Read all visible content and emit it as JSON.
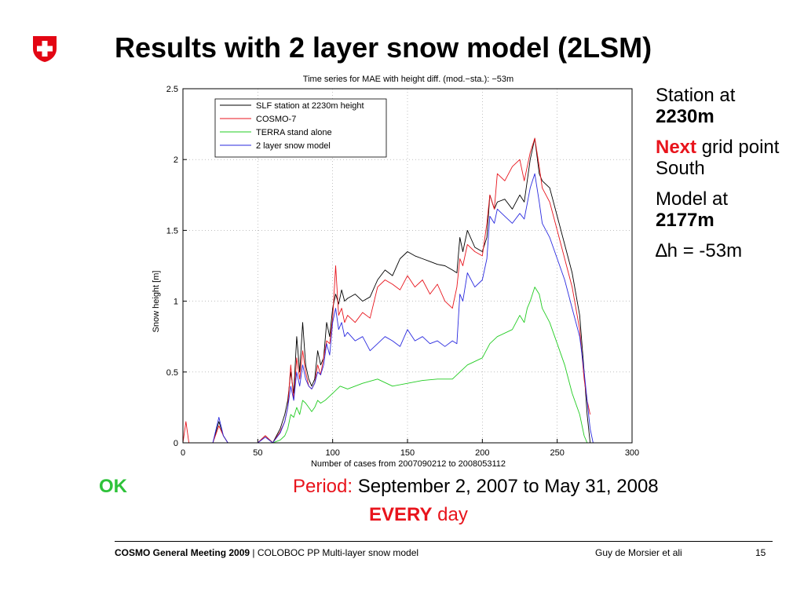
{
  "slide": {
    "title": "Results with 2 layer snow model (2LSM)",
    "side_notes": {
      "station_line1": "Station at",
      "station_line2": "2230m",
      "next_word": "Next",
      "next_rest": "grid point South",
      "model_line1": "Model at",
      "model_line2": "2177m",
      "delta_h": "∆h = -53m"
    },
    "ok_label": "OK",
    "period_label": "Period:",
    "period_text": "September 2, 2007 to May 31, 2008",
    "every_bold": "EVERY",
    "every_rest": "day",
    "footer": {
      "meeting": "COSMO General Meeting 2009",
      "separator": " | ",
      "project": "COLOBOC PP Multi-layer snow model",
      "author": "Guy de Morsier et ali",
      "page": "15"
    },
    "colors": {
      "red": "#e8141c",
      "green": "#2ec23a",
      "logo_red": "#e30613"
    }
  },
  "chart_data": {
    "type": "line",
    "title": "Time series for MAE with height diff. (mod.−sta.): −53m",
    "xlabel": "Number of cases from 2007090212 to 2008053112",
    "ylabel": "Snow height [m]",
    "xlim": [
      0,
      300
    ],
    "ylim": [
      0,
      2.5
    ],
    "xticks": [
      0,
      50,
      100,
      150,
      200,
      250,
      300
    ],
    "yticks": [
      0,
      0.5,
      1,
      1.5,
      2,
      2.5
    ],
    "grid": true,
    "legend_position": "top-left",
    "series": [
      {
        "name": "SLF station at 2230m height",
        "color": "#000000",
        "x": [
          0,
          15,
          20,
          24,
          27,
          30,
          35,
          45,
          50,
          55,
          60,
          65,
          68,
          70,
          72,
          74,
          76,
          78,
          80,
          82,
          84,
          86,
          88,
          90,
          92,
          94,
          96,
          98,
          100,
          102,
          104,
          106,
          108,
          110,
          115,
          120,
          125,
          130,
          135,
          140,
          145,
          150,
          155,
          160,
          165,
          170,
          175,
          180,
          183,
          185,
          187,
          190,
          195,
          200,
          203,
          205,
          208,
          210,
          215,
          220,
          225,
          228,
          232,
          235,
          238,
          240,
          245,
          250,
          255,
          260,
          265,
          268,
          270,
          272
        ],
        "y": [
          0,
          0,
          0,
          0.15,
          0.05,
          0,
          0,
          0,
          0,
          0.05,
          0,
          0.1,
          0.2,
          0.3,
          0.5,
          0.35,
          0.75,
          0.5,
          0.85,
          0.55,
          0.45,
          0.4,
          0.45,
          0.65,
          0.55,
          0.6,
          0.85,
          0.75,
          0.95,
          1.05,
          0.98,
          1.08,
          1.0,
          1.02,
          1.05,
          1.0,
          1.03,
          1.15,
          1.22,
          1.18,
          1.3,
          1.35,
          1.32,
          1.3,
          1.28,
          1.26,
          1.25,
          1.22,
          1.2,
          1.45,
          1.35,
          1.5,
          1.38,
          1.35,
          1.45,
          1.75,
          1.65,
          1.7,
          1.72,
          1.65,
          1.75,
          1.7,
          2.0,
          2.15,
          1.9,
          1.85,
          1.8,
          1.6,
          1.4,
          1.2,
          0.9,
          0.5,
          0.2,
          0
        ]
      },
      {
        "name": "COSMO-7",
        "color": "#e8141c",
        "x": [
          0,
          2,
          4,
          15,
          20,
          24,
          27,
          30,
          35,
          45,
          50,
          55,
          60,
          65,
          68,
          70,
          72,
          74,
          76,
          78,
          80,
          82,
          84,
          86,
          88,
          90,
          92,
          94,
          96,
          98,
          100,
          102,
          104,
          106,
          108,
          110,
          115,
          120,
          125,
          130,
          135,
          140,
          145,
          150,
          155,
          160,
          165,
          170,
          175,
          180,
          183,
          185,
          187,
          190,
          195,
          200,
          203,
          205,
          208,
          210,
          215,
          220,
          225,
          228,
          232,
          235,
          238,
          240,
          245,
          250,
          255,
          260,
          265,
          268,
          270,
          272
        ],
        "y": [
          0,
          0.15,
          0,
          0,
          0,
          0.12,
          0.05,
          0,
          0,
          0,
          0,
          0.05,
          0,
          0.08,
          0.15,
          0.25,
          0.55,
          0.3,
          0.6,
          0.45,
          0.65,
          0.5,
          0.4,
          0.38,
          0.42,
          0.55,
          0.48,
          0.6,
          0.72,
          0.7,
          0.88,
          1.25,
          0.9,
          0.95,
          0.85,
          0.9,
          0.85,
          0.92,
          0.88,
          1.1,
          1.15,
          1.12,
          1.08,
          1.18,
          1.1,
          1.15,
          1.05,
          1.12,
          1.0,
          0.95,
          1.1,
          1.3,
          1.25,
          1.4,
          1.35,
          1.32,
          1.55,
          1.75,
          1.65,
          1.9,
          1.85,
          1.95,
          2.0,
          1.85,
          2.05,
          2.15,
          1.95,
          1.8,
          1.7,
          1.5,
          1.3,
          1.1,
          0.8,
          0.45,
          0.3,
          0.2
        ]
      },
      {
        "name": "TERRA stand alone",
        "color": "#22cc22",
        "x": [
          0,
          50,
          60,
          65,
          68,
          70,
          72,
          74,
          76,
          78,
          80,
          82,
          84,
          86,
          88,
          90,
          92,
          95,
          100,
          105,
          110,
          120,
          130,
          140,
          150,
          160,
          170,
          180,
          185,
          190,
          200,
          205,
          210,
          220,
          225,
          228,
          230,
          232,
          235,
          238,
          240,
          245,
          250,
          255,
          260,
          265,
          268,
          270
        ],
        "y": [
          0,
          0,
          0,
          0.02,
          0.05,
          0.1,
          0.2,
          0.18,
          0.25,
          0.2,
          0.3,
          0.28,
          0.25,
          0.22,
          0.25,
          0.3,
          0.28,
          0.3,
          0.35,
          0.4,
          0.38,
          0.42,
          0.45,
          0.4,
          0.42,
          0.44,
          0.45,
          0.45,
          0.5,
          0.55,
          0.6,
          0.7,
          0.75,
          0.8,
          0.9,
          0.85,
          0.95,
          1.0,
          1.1,
          1.05,
          0.95,
          0.85,
          0.7,
          0.55,
          0.35,
          0.2,
          0.05,
          0
        ]
      },
      {
        "name": "2 layer snow model",
        "color": "#2a2adf",
        "x": [
          0,
          15,
          20,
          24,
          27,
          30,
          35,
          45,
          50,
          55,
          60,
          65,
          68,
          70,
          72,
          74,
          76,
          78,
          80,
          82,
          84,
          86,
          88,
          90,
          92,
          94,
          96,
          98,
          100,
          102,
          104,
          106,
          108,
          110,
          115,
          120,
          125,
          130,
          135,
          140,
          145,
          150,
          155,
          160,
          165,
          170,
          175,
          180,
          183,
          185,
          187,
          190,
          195,
          200,
          203,
          205,
          208,
          210,
          215,
          220,
          225,
          228,
          232,
          235,
          238,
          240,
          245,
          250,
          255,
          260,
          265,
          268,
          270,
          272,
          274
        ],
        "y": [
          0,
          0,
          0,
          0.18,
          0.05,
          0,
          0,
          0,
          0,
          0.04,
          0,
          0.07,
          0.15,
          0.25,
          0.4,
          0.3,
          0.5,
          0.4,
          0.55,
          0.45,
          0.4,
          0.38,
          0.42,
          0.5,
          0.48,
          0.55,
          0.7,
          0.62,
          0.85,
          0.95,
          0.8,
          0.85,
          0.75,
          0.78,
          0.72,
          0.75,
          0.65,
          0.7,
          0.75,
          0.72,
          0.68,
          0.8,
          0.72,
          0.75,
          0.7,
          0.72,
          0.68,
          0.72,
          0.7,
          1.05,
          1.0,
          1.2,
          1.1,
          1.15,
          1.3,
          1.6,
          1.55,
          1.65,
          1.6,
          1.55,
          1.62,
          1.58,
          1.8,
          1.9,
          1.7,
          1.55,
          1.45,
          1.3,
          1.15,
          0.95,
          0.75,
          0.5,
          0.3,
          0.1,
          0
        ]
      }
    ]
  }
}
